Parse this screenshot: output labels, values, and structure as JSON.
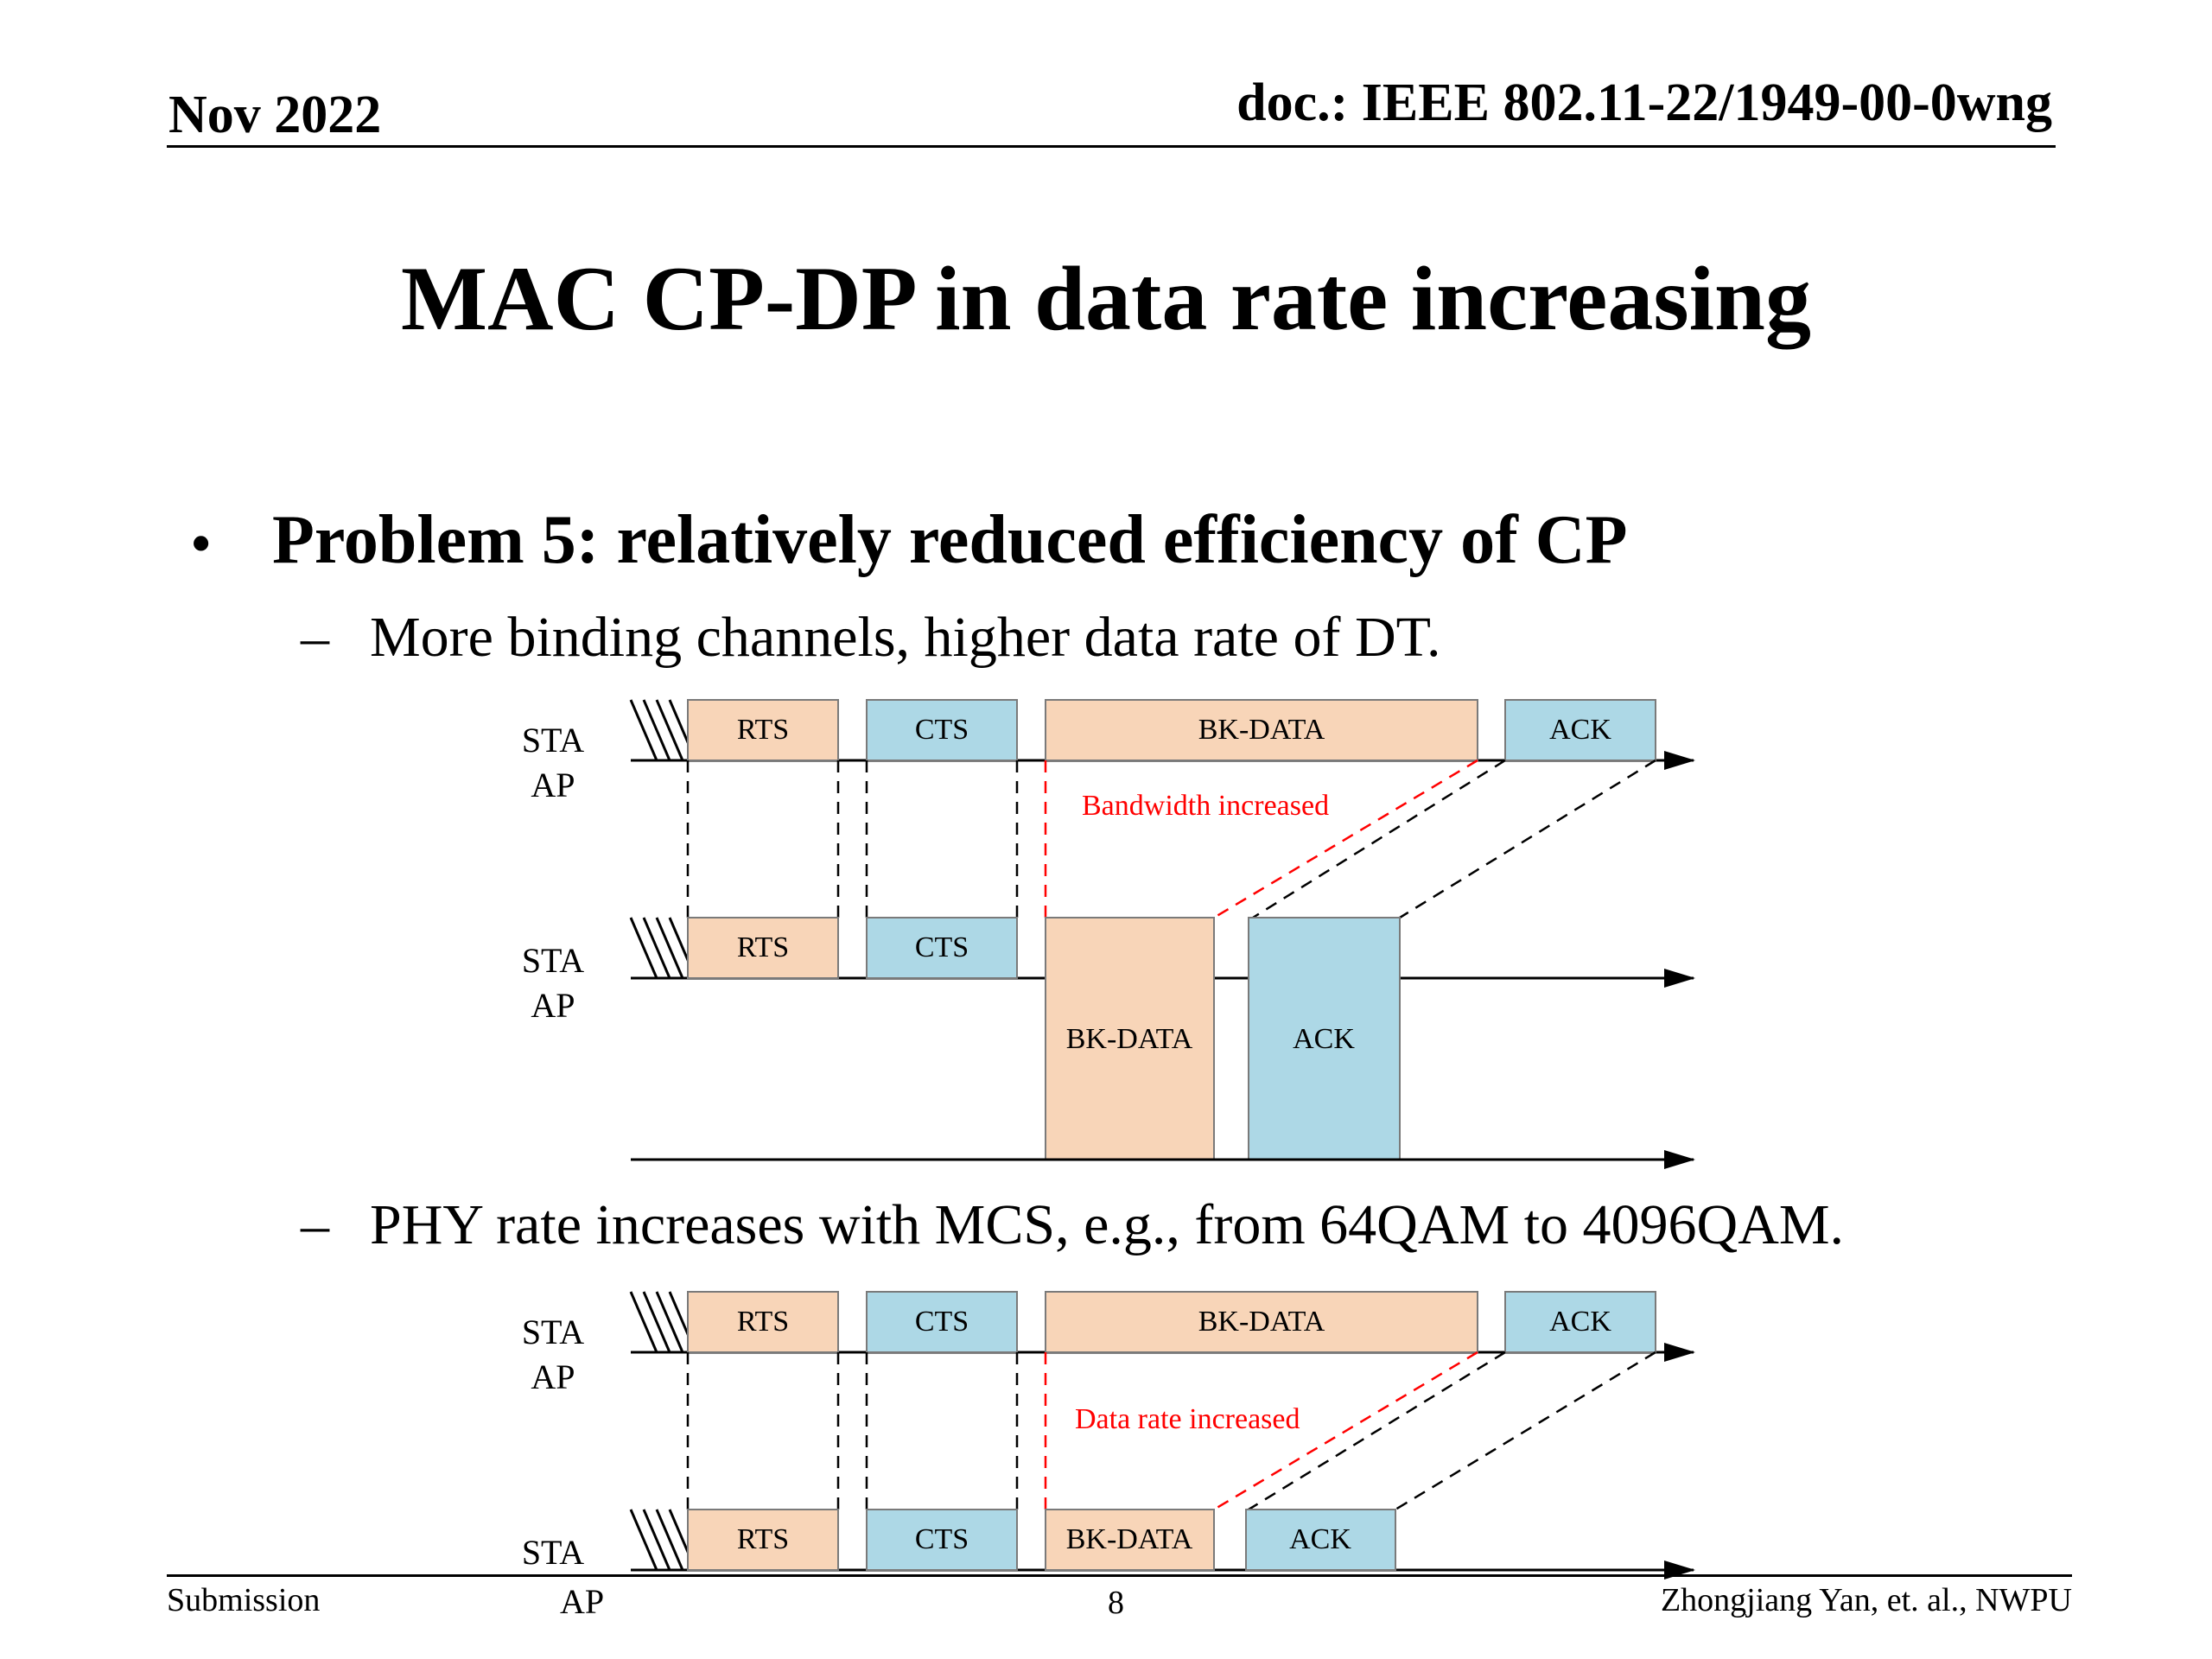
{
  "header": {
    "date": "Nov 2022",
    "doc": "doc.: IEEE 802.11-22/1949-00-0wng"
  },
  "title": "MAC CP-DP in data rate increasing",
  "bullet": "Problem 5: relatively reduced efficiency of CP",
  "subs": [
    "More binding channels, higher data rate of DT.",
    "PHY rate increases with MCS, e.g., from 64QAM to 4096QAM."
  ],
  "dash_glyph": "–",
  "bullet_glyph": "•",
  "diagram1": {
    "sta": "STA",
    "ap": "AP",
    "rts": "RTS",
    "cts": "CTS",
    "data": "BK-DATA",
    "ack": "ACK",
    "note": "Bandwidth increased"
  },
  "diagram2": {
    "sta": "STA",
    "ap": "AP",
    "rts": "RTS",
    "cts": "CTS",
    "data": "BK-DATA",
    "ack": "ACK",
    "note": "Data rate increased"
  },
  "colors": {
    "rts_data_fill": "#f8d5b8",
    "cts_ack_fill": "#add8e6",
    "note": "#ff0000",
    "box_stroke": "#7a7a7a"
  },
  "footer": {
    "left": "Submission",
    "page": "8",
    "right": "Zhongjiang Yan, et. al., NWPU"
  }
}
